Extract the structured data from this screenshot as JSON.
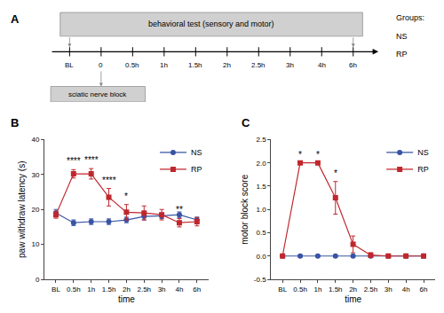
{
  "chart_data": [
    {
      "type": "timeline",
      "title": "A",
      "categories": [
        "BL",
        "0",
        "0.5h",
        "1h",
        "1.5h",
        "2h",
        "2.5h",
        "3h",
        "4h",
        "6h"
      ],
      "annotations": [
        "behavioral test (sensory and motor)",
        "sciatic nerve block",
        "Groups:",
        "NS",
        "RP"
      ]
    },
    {
      "type": "line",
      "title": "B",
      "categories": [
        "BL",
        "0.5h",
        "1h",
        "1.5h",
        "2h",
        "2.5h",
        "3h",
        "4h",
        "6h"
      ],
      "xlabel": "time",
      "ylabel": "paw withdraw latency (s)",
      "ylim": [
        0,
        40
      ],
      "yticks": [
        0,
        10,
        20,
        30,
        40
      ],
      "grid": false,
      "legend": "upper right",
      "series": [
        {
          "name": "NS",
          "color": "#3953a4",
          "marker": "circle",
          "values": [
            19.0,
            16.2,
            16.5,
            16.5,
            17.0,
            18.0,
            18.2,
            18.5,
            17.0
          ],
          "errors": [
            1.0,
            0.8,
            0.8,
            0.8,
            0.8,
            1.0,
            0.8,
            0.8,
            0.8
          ]
        },
        {
          "name": "RP",
          "color": "#c0272d",
          "marker": "square",
          "values": [
            18.5,
            30.2,
            30.2,
            23.5,
            19.2,
            19.0,
            18.5,
            16.2,
            16.5
          ],
          "errors": [
            1.0,
            1.2,
            1.5,
            2.5,
            2.2,
            2.0,
            1.5,
            1.2,
            1.2
          ]
        }
      ],
      "annotations": [
        {
          "category": "0.5h",
          "text": "****",
          "series": "RP"
        },
        {
          "category": "1h",
          "text": "****",
          "series": "RP"
        },
        {
          "category": "1.5h",
          "text": "****",
          "series": "RP"
        },
        {
          "category": "2h",
          "text": "*",
          "series": "RP"
        },
        {
          "category": "4h",
          "text": "**",
          "series": "RP"
        }
      ]
    },
    {
      "type": "line",
      "title": "C",
      "categories": [
        "BL",
        "0.5h",
        "1h",
        "1.5h",
        "2h",
        "2.5h",
        "3h",
        "4h",
        "6h"
      ],
      "xlabel": "time",
      "ylabel": "motor block score",
      "ylim": [
        -0.5,
        2.5
      ],
      "yticks": [
        -0.5,
        {
          "value": 0.0,
          "label": "0.0"
        },
        0.5,
        {
          "value": 1.0,
          "label": "1.0"
        },
        1.5,
        {
          "value": 2.0,
          "label": "2.0"
        },
        2.5
      ],
      "grid": false,
      "legend": "upper right",
      "series": [
        {
          "name": "NS",
          "color": "#3953a4",
          "marker": "circle",
          "values": [
            0.0,
            0.0,
            0.0,
            0.0,
            0.0,
            0.0,
            0.0,
            0.0,
            0.0
          ],
          "errors": [
            0.0,
            0.02,
            0.02,
            0.02,
            0.02,
            0.02,
            0.02,
            0.02,
            0.02
          ]
        },
        {
          "name": "RP",
          "color": "#c0272d",
          "marker": "square",
          "values": [
            0.0,
            2.0,
            2.0,
            1.25,
            0.25,
            0.02,
            0.0,
            0.0,
            0.0
          ],
          "errors": [
            0.0,
            0.0,
            0.0,
            0.35,
            0.18,
            0.05,
            0.02,
            0.02,
            0.02
          ]
        }
      ],
      "annotations": [
        {
          "category": "0.5h",
          "text": "*",
          "series": "RP"
        },
        {
          "category": "1h",
          "text": "*",
          "series": "RP"
        },
        {
          "category": "1.5h",
          "text": "*",
          "series": "RP"
        }
      ]
    }
  ]
}
